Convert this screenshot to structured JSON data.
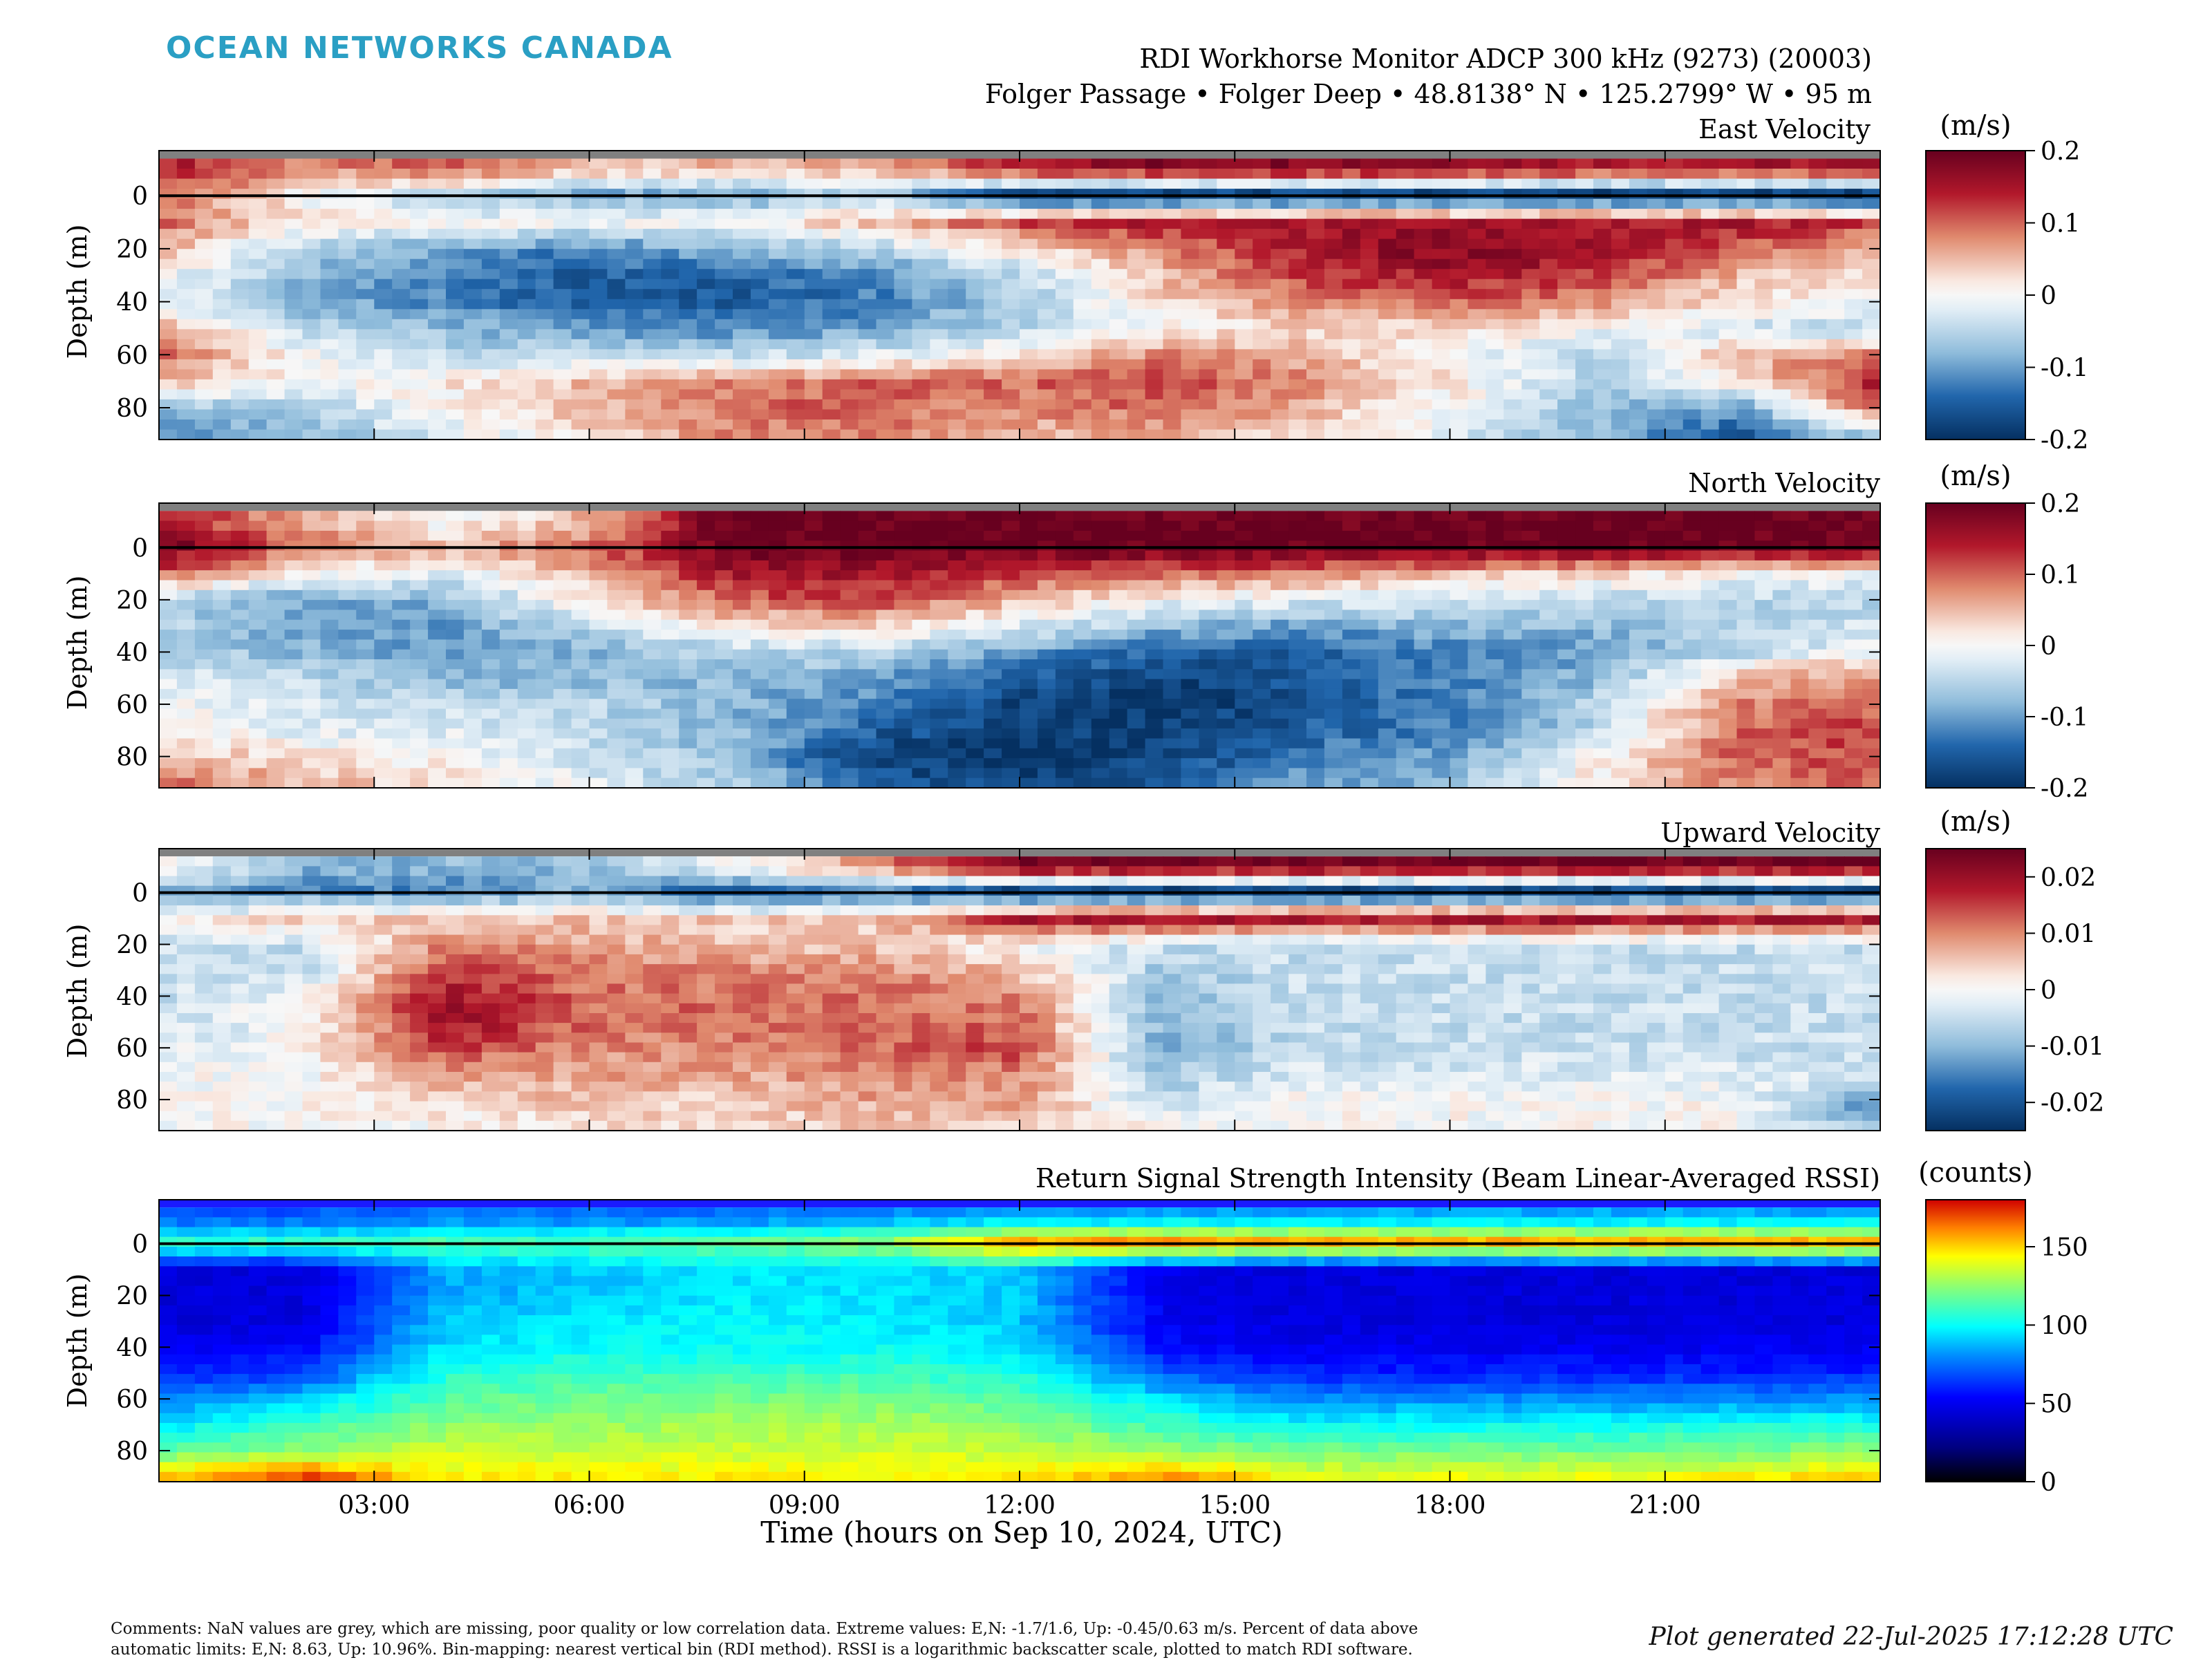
{
  "header": {
    "logo": "OCEAN NETWORKS CANADA",
    "title_line1": "RDI Workhorse Monitor ADCP 300 kHz (9273) (20003)",
    "title_line2": "Folger Passage • Folger Deep • 48.8138° N • 125.2799° W • 95 m"
  },
  "footer": {
    "comments_line1": "Comments: NaN values are grey, which are missing, poor quality or low correlation data. Extreme values: E,N: -1.7/1.6, Up: -0.45/0.63 m/s. Percent of data above",
    "comments_line2": "automatic limits: E,N: 8.63, Up: 10.96%. Bin-mapping: nearest vertical bin (RDI method). RSSI is a logarithmic backscatter scale, plotted to match RDI software.",
    "generated": "Plot generated 22-Jul-2025 17:12:28 UTC"
  },
  "chart_data": [
    {
      "type": "heatmap",
      "title": "East Velocity",
      "ylabel": "Depth (m)",
      "colorbar_label": "(m/s)",
      "colormap": "red-white-blue",
      "clim": [
        -0.2,
        0.2
      ],
      "colorbar_ticks": [
        "0.2",
        "0.1",
        "0",
        "-0.1",
        "-0.2"
      ],
      "colorbar_tick_values": [
        0.2,
        0.1,
        0,
        -0.1,
        -0.2
      ],
      "yticks": [
        0,
        20,
        40,
        60,
        80
      ],
      "ylim": [
        -17,
        92
      ],
      "xlim": [
        0,
        24
      ],
      "x_hours": [
        0,
        2,
        4,
        6,
        8,
        10,
        12,
        14,
        16,
        18,
        20,
        22,
        24
      ],
      "depth_m": [
        -10,
        0,
        10,
        20,
        30,
        40,
        50,
        60,
        70,
        80,
        90
      ],
      "values": [
        [
          0.15,
          0.08,
          0.1,
          0.05,
          0.05,
          0.05,
          0.15,
          0.18,
          0.18,
          0.18,
          0.15,
          0.15,
          0.15
        ],
        [
          0.1,
          0.0,
          -0.05,
          -0.1,
          -0.1,
          -0.05,
          -0.2,
          -0.2,
          -0.2,
          -0.2,
          -0.2,
          -0.2,
          -0.2
        ],
        [
          0.1,
          0.02,
          0.0,
          0.0,
          0.0,
          0.05,
          0.12,
          0.15,
          0.15,
          0.15,
          0.15,
          0.15,
          0.12
        ],
        [
          0.05,
          -0.05,
          -0.1,
          -0.12,
          -0.08,
          -0.05,
          0.02,
          0.08,
          0.15,
          0.18,
          0.17,
          0.1,
          0.05
        ],
        [
          0.0,
          -0.08,
          -0.12,
          -0.15,
          -0.15,
          -0.12,
          -0.05,
          0.05,
          0.12,
          0.15,
          0.12,
          0.05,
          0.02
        ],
        [
          -0.02,
          -0.08,
          -0.12,
          -0.15,
          -0.15,
          -0.12,
          -0.06,
          0.03,
          0.08,
          0.1,
          0.08,
          0.02,
          0.0
        ],
        [
          0.05,
          -0.05,
          -0.08,
          -0.1,
          -0.12,
          -0.1,
          -0.05,
          0.0,
          0.03,
          0.03,
          0.0,
          -0.03,
          -0.05
        ],
        [
          0.1,
          0.0,
          -0.05,
          -0.05,
          -0.05,
          -0.02,
          0.02,
          0.08,
          0.05,
          0.0,
          -0.05,
          0.05,
          0.08
        ],
        [
          0.05,
          0.0,
          0.02,
          0.05,
          0.08,
          0.1,
          0.1,
          0.12,
          0.08,
          0.02,
          -0.05,
          0.02,
          0.15
        ],
        [
          -0.08,
          -0.05,
          0.0,
          0.05,
          0.1,
          0.1,
          0.08,
          0.1,
          0.05,
          0.0,
          -0.08,
          -0.1,
          0.1
        ],
        [
          -0.12,
          -0.08,
          -0.02,
          0.02,
          0.08,
          0.08,
          0.05,
          0.06,
          0.03,
          -0.02,
          -0.08,
          -0.15,
          -0.05
        ]
      ]
    },
    {
      "type": "heatmap",
      "title": "North Velocity",
      "ylabel": "Depth (m)",
      "colorbar_label": "(m/s)",
      "colormap": "red-white-blue",
      "clim": [
        -0.2,
        0.2
      ],
      "colorbar_ticks": [
        "0.2",
        "0.1",
        "0",
        "-0.1",
        "-0.2"
      ],
      "colorbar_tick_values": [
        0.2,
        0.1,
        0,
        -0.1,
        -0.2
      ],
      "yticks": [
        0,
        20,
        40,
        60,
        80
      ],
      "ylim": [
        -17,
        92
      ],
      "xlim": [
        0,
        24
      ],
      "x_hours": [
        0,
        2,
        4,
        6,
        8,
        10,
        12,
        14,
        16,
        18,
        20,
        22,
        24
      ],
      "depth_m": [
        -10,
        0,
        10,
        20,
        30,
        40,
        50,
        60,
        70,
        80,
        90
      ],
      "values": [
        [
          0.15,
          0.05,
          0.0,
          0.05,
          0.2,
          0.2,
          0.2,
          0.2,
          0.2,
          0.2,
          0.2,
          0.2,
          0.2
        ],
        [
          0.2,
          0.1,
          0.05,
          0.1,
          0.2,
          0.2,
          0.2,
          0.2,
          0.2,
          0.2,
          0.2,
          0.2,
          0.2
        ],
        [
          0.1,
          0.0,
          -0.02,
          0.05,
          0.15,
          0.15,
          0.12,
          0.1,
          0.08,
          0.05,
          0.03,
          0.0,
          0.0
        ],
        [
          -0.05,
          -0.1,
          -0.08,
          0.02,
          0.1,
          0.12,
          0.05,
          0.0,
          -0.02,
          -0.02,
          -0.05,
          -0.05,
          -0.05
        ],
        [
          -0.05,
          -0.1,
          -0.1,
          -0.05,
          0.02,
          0.03,
          -0.02,
          -0.08,
          -0.1,
          -0.08,
          -0.08,
          -0.05,
          -0.03
        ],
        [
          -0.05,
          -0.08,
          -0.1,
          -0.08,
          -0.05,
          -0.05,
          -0.1,
          -0.15,
          -0.15,
          -0.12,
          -0.1,
          -0.05,
          0.0
        ],
        [
          -0.02,
          -0.05,
          -0.08,
          -0.08,
          -0.08,
          -0.1,
          -0.15,
          -0.18,
          -0.15,
          -0.12,
          -0.08,
          0.05,
          0.08
        ],
        [
          0.0,
          -0.03,
          -0.05,
          -0.05,
          -0.08,
          -0.12,
          -0.18,
          -0.2,
          -0.16,
          -0.12,
          -0.05,
          0.08,
          0.1
        ],
        [
          0.02,
          -0.02,
          -0.02,
          -0.05,
          -0.08,
          -0.15,
          -0.18,
          -0.18,
          -0.15,
          -0.12,
          -0.05,
          0.1,
          0.12
        ],
        [
          0.05,
          0.02,
          0.0,
          -0.03,
          -0.08,
          -0.18,
          -0.2,
          -0.18,
          -0.12,
          -0.1,
          0.0,
          0.1,
          0.12
        ],
        [
          0.1,
          0.05,
          0.02,
          -0.02,
          -0.06,
          -0.15,
          -0.18,
          -0.15,
          -0.1,
          -0.08,
          0.02,
          0.08,
          0.1
        ]
      ]
    },
    {
      "type": "heatmap",
      "title": "Upward Velocity",
      "ylabel": "Depth (m)",
      "colorbar_label": "(m/s)",
      "colormap": "red-white-blue",
      "clim": [
        -0.025,
        0.025
      ],
      "colorbar_ticks": [
        "0.02",
        "0.01",
        "0",
        "-0.01",
        "-0.02"
      ],
      "colorbar_tick_values": [
        0.02,
        0.01,
        0,
        -0.01,
        -0.02
      ],
      "yticks": [
        0,
        20,
        40,
        60,
        80
      ],
      "ylim": [
        -17,
        92
      ],
      "xlim": [
        0,
        24
      ],
      "x_hours": [
        0,
        2,
        4,
        6,
        8,
        10,
        12,
        14,
        16,
        18,
        20,
        22,
        24
      ],
      "depth_m": [
        -10,
        0,
        10,
        20,
        30,
        40,
        50,
        60,
        70,
        80,
        90
      ],
      "values": [
        [
          0.0,
          -0.01,
          -0.01,
          -0.01,
          0.0,
          0.01,
          0.025,
          0.025,
          0.025,
          0.025,
          0.025,
          0.025,
          0.025
        ],
        [
          -0.01,
          -0.015,
          -0.015,
          -0.01,
          -0.02,
          -0.015,
          -0.025,
          -0.025,
          -0.025,
          -0.025,
          -0.025,
          -0.025,
          -0.025
        ],
        [
          0.0,
          0.005,
          0.005,
          0.005,
          0.005,
          0.005,
          0.02,
          0.02,
          0.02,
          0.02,
          0.02,
          0.02,
          0.02
        ],
        [
          -0.005,
          -0.005,
          0.01,
          0.008,
          0.005,
          0.005,
          0.0,
          -0.005,
          -0.005,
          -0.005,
          -0.005,
          -0.005,
          -0.005
        ],
        [
          -0.005,
          -0.005,
          0.015,
          0.01,
          0.01,
          0.01,
          0.005,
          -0.008,
          -0.005,
          -0.005,
          -0.005,
          -0.005,
          -0.005
        ],
        [
          -0.005,
          0.0,
          0.02,
          0.012,
          0.012,
          0.012,
          0.01,
          -0.01,
          -0.005,
          -0.005,
          -0.005,
          -0.005,
          -0.005
        ],
        [
          -0.005,
          0.0,
          0.02,
          0.012,
          0.012,
          0.012,
          0.012,
          -0.01,
          -0.005,
          -0.005,
          -0.005,
          -0.005,
          -0.005
        ],
        [
          -0.003,
          0.0,
          0.015,
          0.01,
          0.01,
          0.012,
          0.015,
          -0.012,
          -0.005,
          -0.005,
          -0.005,
          -0.005,
          -0.005
        ],
        [
          0.0,
          0.0,
          0.008,
          0.008,
          0.008,
          0.01,
          0.01,
          -0.008,
          -0.003,
          -0.003,
          -0.003,
          -0.003,
          -0.003
        ],
        [
          0.0,
          0.0,
          0.005,
          0.005,
          0.005,
          0.008,
          0.008,
          -0.005,
          0.0,
          0.0,
          0.0,
          0.0,
          -0.015
        ],
        [
          0.0,
          0.0,
          0.0,
          0.003,
          0.003,
          0.005,
          0.005,
          0.0,
          0.0,
          0.0,
          0.0,
          0.0,
          -0.01
        ]
      ]
    },
    {
      "type": "heatmap",
      "title": "Return Signal Strength Intensity (Beam Linear-Averaged RSSI)",
      "ylabel": "Depth (m)",
      "xlabel": "Time (hours on Sep 10, 2024, UTC)",
      "colorbar_label": "(counts)",
      "colormap": "jet",
      "clim": [
        0,
        180
      ],
      "colorbar_ticks": [
        "150",
        "100",
        "50",
        "0"
      ],
      "colorbar_tick_values": [
        150,
        100,
        50,
        0
      ],
      "yticks": [
        0,
        20,
        40,
        60,
        80
      ],
      "ylim": [
        -17,
        92
      ],
      "xlim": [
        0,
        24
      ],
      "xticks": [
        3,
        6,
        9,
        12,
        15,
        18,
        21
      ],
      "xticklabels": [
        "03:00",
        "06:00",
        "09:00",
        "12:00",
        "15:00",
        "18:00",
        "21:00"
      ],
      "x_hours": [
        0,
        2,
        4,
        6,
        8,
        10,
        12,
        14,
        16,
        18,
        20,
        22,
        24
      ],
      "depth_m": [
        -10,
        0,
        10,
        20,
        30,
        40,
        50,
        60,
        70,
        80,
        90
      ],
      "values": [
        [
          70,
          70,
          75,
          75,
          75,
          80,
          85,
          85,
          85,
          85,
          85,
          85,
          85
        ],
        [
          110,
          110,
          115,
          115,
          120,
          125,
          160,
          165,
          160,
          160,
          160,
          160,
          160
        ],
        [
          45,
          45,
          85,
          90,
          95,
          95,
          90,
          50,
          45,
          45,
          45,
          45,
          45
        ],
        [
          45,
          45,
          85,
          90,
          95,
          95,
          90,
          50,
          45,
          45,
          45,
          45,
          45
        ],
        [
          45,
          45,
          90,
          95,
          100,
          95,
          90,
          50,
          45,
          45,
          45,
          45,
          45
        ],
        [
          50,
          55,
          95,
          100,
          100,
          100,
          95,
          55,
          50,
          50,
          50,
          50,
          50
        ],
        [
          60,
          65,
          105,
          110,
          110,
          110,
          105,
          70,
          60,
          60,
          60,
          60,
          60
        ],
        [
          75,
          90,
          115,
          120,
          120,
          120,
          115,
          95,
          80,
          80,
          80,
          80,
          80
        ],
        [
          95,
          110,
          125,
          125,
          130,
          130,
          125,
          110,
          100,
          100,
          100,
          105,
          105
        ],
        [
          115,
          125,
          135,
          135,
          135,
          135,
          135,
          125,
          120,
          120,
          120,
          120,
          125
        ],
        [
          150,
          170,
          145,
          145,
          145,
          145,
          145,
          160,
          140,
          140,
          140,
          145,
          150
        ]
      ]
    }
  ]
}
